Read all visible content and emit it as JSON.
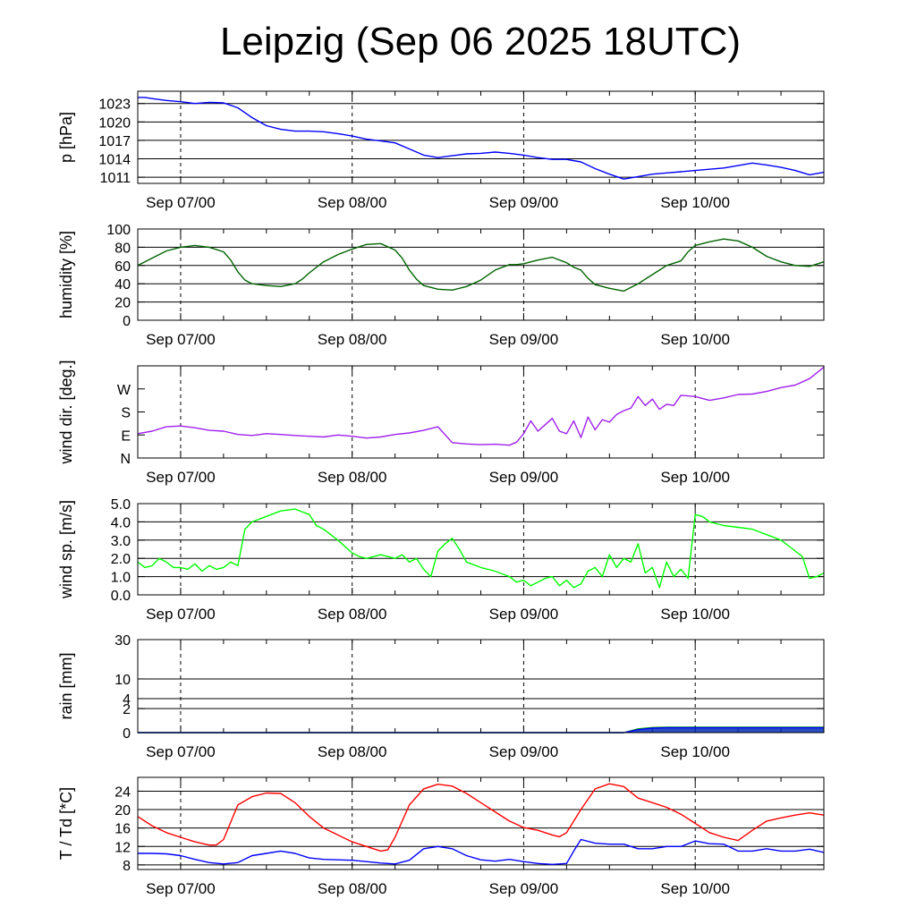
{
  "title": "Leipzig (Sep 06 2025 18UTC)",
  "time_axis": {
    "start_hour": 0,
    "end_hour": 96,
    "day_tick_hours": [
      6,
      30,
      54,
      78
    ],
    "day_labels": [
      "Sep 07/00",
      "Sep 08/00",
      "Sep 09/00",
      "Sep 10/00"
    ]
  },
  "chart_data": [
    {
      "type": "line",
      "id": "pressure",
      "ylabel": "p [hPa]",
      "ylim": [
        1010,
        1025
      ],
      "yticks": [
        1011,
        1014,
        1017,
        1020,
        1023
      ],
      "gridlines": [
        1011,
        1014,
        1017,
        1020,
        1023
      ],
      "color": "#0000ff",
      "x": [
        0,
        1,
        2,
        4,
        6,
        8,
        10,
        12,
        14,
        16,
        18,
        20,
        22,
        24,
        26,
        28,
        30,
        32,
        34,
        36,
        38,
        40,
        42,
        44,
        46,
        48,
        50,
        52,
        54,
        56,
        58,
        60,
        62,
        64,
        66,
        68,
        70,
        72,
        74,
        76,
        78,
        80,
        82,
        84,
        86,
        88,
        90,
        92,
        94,
        96
      ],
      "y": [
        1024,
        1024,
        1023.8,
        1023.5,
        1023.3,
        1023,
        1023.2,
        1023.1,
        1022.3,
        1020.7,
        1019.4,
        1018.8,
        1018.5,
        1018.5,
        1018.4,
        1018.1,
        1017.7,
        1017.2,
        1016.9,
        1016.6,
        1015.6,
        1014.6,
        1014.2,
        1014.5,
        1014.8,
        1014.9,
        1015.1,
        1014.9,
        1014.6,
        1014.2,
        1013.9,
        1013.9,
        1013.5,
        1012.4,
        1011.5,
        1010.7,
        1011.1,
        1011.5,
        1011.7,
        1011.9,
        1012.1,
        1012.3,
        1012.5,
        1012.9,
        1013.3,
        1013,
        1012.6,
        1012.1,
        1011.4,
        1011.8
      ]
    },
    {
      "type": "line",
      "id": "humidity",
      "ylabel": "humidity [%]",
      "ylim": [
        0,
        100
      ],
      "yticks": [
        0,
        20,
        40,
        60,
        80,
        100
      ],
      "gridlines": [
        20,
        40,
        60,
        80
      ],
      "color": "#006400",
      "x": [
        0,
        2,
        4,
        6,
        8,
        10,
        12,
        13,
        14,
        15,
        16,
        18,
        20,
        22,
        23,
        24,
        26,
        28,
        30,
        32,
        34,
        36,
        37,
        38,
        39,
        40,
        42,
        44,
        46,
        48,
        50,
        52,
        53,
        54,
        56,
        58,
        60,
        61,
        62,
        63,
        64,
        66,
        68,
        70,
        72,
        74,
        76,
        77,
        78,
        80,
        82,
        84,
        86,
        88,
        90,
        92,
        94,
        96
      ],
      "y": [
        60,
        68,
        76,
        80,
        82,
        80,
        75,
        66,
        53,
        44,
        40,
        38,
        37,
        40,
        45,
        52,
        64,
        72,
        78,
        83,
        84,
        77,
        68,
        55,
        45,
        38,
        34,
        33,
        37,
        44,
        55,
        61,
        61,
        62,
        66,
        69,
        63,
        58,
        55,
        46,
        39,
        35,
        32,
        40,
        50,
        60,
        65,
        75,
        82,
        86,
        89,
        87,
        80,
        70,
        64,
        60,
        59,
        64
      ]
    },
    {
      "type": "line",
      "id": "wind_direction",
      "ylabel": "wind dir. [deg.]",
      "ylim": [
        0,
        360
      ],
      "yticks": [
        0,
        90,
        180,
        270
      ],
      "tick_labels": [
        "N",
        "E",
        "S",
        "W"
      ],
      "gridlines": [],
      "color": "#a020f0",
      "x": [
        0,
        2,
        4,
        6,
        8,
        10,
        12,
        14,
        16,
        18,
        20,
        22,
        24,
        26,
        28,
        30,
        32,
        34,
        36,
        38,
        40,
        42,
        44,
        46,
        48,
        50,
        52,
        53,
        54,
        55,
        56,
        57,
        58,
        59,
        60,
        61,
        62,
        63,
        64,
        65,
        66,
        67,
        68,
        69,
        70,
        71,
        72,
        73,
        74,
        75,
        76,
        78,
        80,
        82,
        84,
        86,
        88,
        90,
        92,
        94,
        96
      ],
      "y": [
        95,
        105,
        122,
        125,
        118,
        108,
        105,
        92,
        88,
        95,
        92,
        88,
        85,
        82,
        90,
        85,
        78,
        82,
        92,
        98,
        108,
        122,
        60,
        55,
        52,
        54,
        50,
        62,
        95,
        145,
        105,
        130,
        155,
        105,
        95,
        145,
        80,
        160,
        110,
        150,
        140,
        170,
        185,
        195,
        240,
        205,
        230,
        190,
        210,
        205,
        245,
        240,
        225,
        235,
        248,
        250,
        260,
        275,
        285,
        310,
        355
      ]
    },
    {
      "type": "line",
      "id": "wind_speed",
      "ylabel": "wind sp. [m/s]",
      "ylim": [
        0,
        5
      ],
      "yticks": [
        0,
        1,
        2,
        3,
        4,
        5
      ],
      "tick_labels": [
        "0.0",
        "1.0",
        "2.0",
        "3.0",
        "4.0",
        "5.0"
      ],
      "gridlines": [
        1,
        2,
        3,
        4
      ],
      "color": "#00ff00",
      "x": [
        0,
        1,
        2,
        3,
        4,
        5,
        6,
        7,
        8,
        9,
        10,
        11,
        12,
        13,
        14,
        15,
        16,
        18,
        20,
        22,
        24,
        25,
        26,
        28,
        30,
        31,
        32,
        33,
        34,
        35,
        36,
        37,
        38,
        39,
        40,
        41,
        42,
        43,
        44,
        45,
        46,
        48,
        50,
        52,
        53,
        54,
        55,
        56,
        57,
        58,
        59,
        60,
        61,
        62,
        63,
        64,
        65,
        66,
        67,
        68,
        69,
        70,
        71,
        72,
        73,
        74,
        75,
        76,
        77,
        78,
        79,
        80,
        82,
        84,
        86,
        88,
        90,
        92,
        93,
        94,
        95,
        96
      ],
      "y": [
        1.8,
        1.5,
        1.6,
        2.0,
        1.8,
        1.5,
        1.5,
        1.4,
        1.7,
        1.3,
        1.6,
        1.4,
        1.5,
        1.8,
        1.6,
        3.6,
        4.0,
        4.3,
        4.6,
        4.7,
        4.4,
        3.8,
        3.6,
        3.0,
        2.3,
        2.1,
        2.0,
        2.1,
        2.2,
        2.1,
        2.0,
        2.2,
        1.8,
        2.0,
        1.4,
        1.0,
        2.4,
        2.8,
        3.1,
        2.5,
        1.8,
        1.5,
        1.3,
        1.0,
        0.7,
        0.8,
        0.5,
        0.7,
        0.9,
        1.0,
        0.5,
        0.8,
        0.4,
        0.6,
        1.3,
        1.5,
        1.0,
        2.2,
        1.5,
        2.0,
        1.8,
        2.8,
        1.2,
        1.5,
        0.4,
        1.8,
        1.0,
        1.4,
        0.9,
        4.4,
        4.3,
        4.0,
        3.8,
        3.7,
        3.6,
        3.3,
        3.0,
        2.4,
        2.1,
        0.9,
        1.0,
        1.2
      ]
    },
    {
      "type": "area",
      "id": "rain",
      "ylabel": "rain [mm]",
      "ylim": [
        0,
        30
      ],
      "scale": "sqrt",
      "yticks": [
        0,
        2,
        4,
        10,
        30
      ],
      "tick_labels": [
        "0",
        "2",
        "4",
        "10",
        "30"
      ],
      "gridlines": [
        2,
        4,
        10,
        30
      ],
      "series": [
        {
          "name": "rain",
          "color": "#00a000",
          "x": [
            0,
            68,
            70,
            72,
            74,
            78,
            96
          ],
          "y": [
            0,
            0,
            0.05,
            0.09,
            0.1,
            0.1,
            0.1
          ]
        },
        {
          "name": "rain-line",
          "color": "#0000ff",
          "x": [
            0,
            68,
            70,
            72,
            74,
            78,
            96
          ],
          "y": [
            0,
            0,
            0.03,
            0.07,
            0.08,
            0.08,
            0.08
          ]
        }
      ]
    },
    {
      "type": "line",
      "id": "temperature",
      "ylabel": "T / Td [*C]",
      "ylim": [
        7,
        27
      ],
      "yticks": [
        8,
        12,
        16,
        20,
        24
      ],
      "gridlines": [
        8,
        12,
        16,
        20,
        24
      ],
      "series": [
        {
          "name": "T",
          "color": "#ff0000",
          "x": [
            0,
            2,
            4,
            6,
            8,
            10,
            11,
            12,
            14,
            16,
            18,
            20,
            22,
            24,
            26,
            28,
            30,
            32,
            34,
            35,
            36,
            38,
            40,
            42,
            44,
            46,
            48,
            50,
            52,
            54,
            56,
            58,
            59,
            60,
            62,
            64,
            66,
            68,
            70,
            72,
            74,
            76,
            78,
            80,
            82,
            84,
            86,
            88,
            90,
            92,
            94,
            96
          ],
          "y": [
            18.5,
            16.5,
            15,
            14,
            13,
            12.3,
            12.3,
            13.5,
            21,
            22.8,
            23.6,
            23.5,
            21.5,
            18.5,
            16,
            14.5,
            13,
            12,
            11,
            11.3,
            14,
            21,
            24.5,
            25.5,
            25.1,
            23.5,
            21.5,
            19.5,
            17.5,
            16.1,
            15.5,
            14.5,
            14.1,
            15,
            20,
            24.5,
            25.6,
            25,
            22.5,
            21.5,
            20.5,
            19,
            17,
            15,
            14,
            13.3,
            15.5,
            17.5,
            18.2,
            18.8,
            19.3,
            18.8
          ]
        },
        {
          "name": "Td",
          "color": "#0000ff",
          "x": [
            0,
            2,
            4,
            6,
            8,
            10,
            12,
            14,
            16,
            18,
            20,
            22,
            24,
            26,
            28,
            30,
            32,
            34,
            36,
            38,
            40,
            42,
            44,
            46,
            48,
            50,
            52,
            54,
            56,
            58,
            60,
            61,
            62,
            64,
            66,
            68,
            70,
            72,
            74,
            76,
            78,
            80,
            82,
            84,
            86,
            88,
            90,
            92,
            94,
            96
          ],
          "y": [
            10.5,
            10.5,
            10.4,
            10,
            9.2,
            8.5,
            8.2,
            8.5,
            10,
            10.5,
            11,
            10.5,
            9.5,
            9.2,
            9.1,
            9,
            8.7,
            8.4,
            8.2,
            9,
            11.5,
            12,
            11.5,
            10,
            9.1,
            8.8,
            9.2,
            8.7,
            8.3,
            8.1,
            8.3,
            11,
            13.5,
            12.7,
            12.5,
            12.5,
            11.5,
            11.5,
            12,
            12,
            13.2,
            12.6,
            12.5,
            11,
            11,
            11.5,
            11,
            11,
            11.4,
            10.7
          ]
        }
      ]
    }
  ]
}
